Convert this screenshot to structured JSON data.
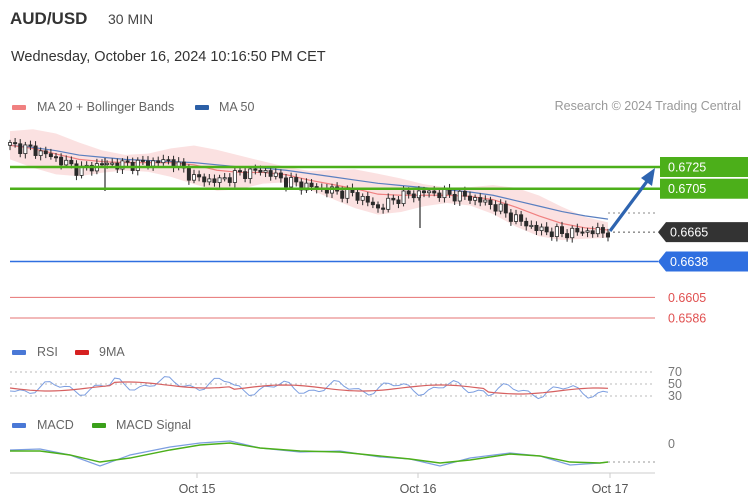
{
  "header": {
    "pair": "AUD/USD",
    "timeframe": "30 MIN",
    "datetime": "Wednesday, October 16, 2024 10:16:50 PM CET",
    "credit": "Research © 2024 Trading Central"
  },
  "legend": {
    "main": [
      {
        "label": "MA 20 + Bollinger Bands",
        "color": "#f08080"
      },
      {
        "label": "MA 50",
        "color": "#2b5fa6"
      }
    ],
    "rsi": [
      {
        "label": "RSI",
        "color": "#4a78d6"
      },
      {
        "label": "9MA",
        "color": "#d62020"
      }
    ],
    "macd": [
      {
        "label": "MACD",
        "color": "#4a78d6"
      },
      {
        "label": "MACD Signal",
        "color": "#3aa01a"
      }
    ]
  },
  "levels": [
    {
      "value": "0.6725",
      "type": "resistance",
      "color": "#4caf1a"
    },
    {
      "value": "0.6705",
      "type": "resistance",
      "color": "#4caf1a"
    },
    {
      "value": "0.6665",
      "type": "last",
      "color": "#333333"
    },
    {
      "value": "0.6638",
      "type": "support",
      "color": "#2f6fe0"
    },
    {
      "value": "0.6605",
      "type": "support-red",
      "color": "#e05050"
    },
    {
      "value": "0.6586",
      "type": "support-red",
      "color": "#e05050"
    }
  ],
  "rsi_levels": [
    "70",
    "50",
    "30"
  ],
  "macd_levels": [
    "0"
  ],
  "x_labels": [
    "Oct 15",
    "Oct 16",
    "Oct 17"
  ],
  "chart_data": {
    "type": "line",
    "title": "AUD/USD 30 MIN",
    "ylim": [
      0.6575,
      0.675
    ],
    "x": [
      "Oct 14 18:00",
      "Oct 14 20:00",
      "Oct 14 22:00",
      "Oct 15 00:00",
      "Oct 15 02:00",
      "Oct 15 04:00",
      "Oct 15 06:00",
      "Oct 15 08:00",
      "Oct 15 10:00",
      "Oct 15 12:00",
      "Oct 15 14:00",
      "Oct 15 16:00",
      "Oct 15 18:00",
      "Oct 15 20:00",
      "Oct 15 22:00",
      "Oct 16 00:00",
      "Oct 16 02:00",
      "Oct 16 04:00",
      "Oct 16 06:00",
      "Oct 16 08:00",
      "Oct 16 10:00",
      "Oct 16 12:00",
      "Oct 16 14:00",
      "Oct 16 16:00",
      "Oct 16 18:00",
      "Oct 16 20:00",
      "Oct 16 22:00"
    ],
    "series": [
      {
        "name": "Price",
        "values": [
          0.6745,
          0.6741,
          0.6733,
          0.6722,
          0.6728,
          0.6727,
          0.6729,
          0.6731,
          0.6715,
          0.6712,
          0.6719,
          0.6722,
          0.6712,
          0.6707,
          0.6703,
          0.67,
          0.6687,
          0.6698,
          0.6702,
          0.67,
          0.6697,
          0.669,
          0.6677,
          0.6667,
          0.6664,
          0.6666,
          0.6665
        ]
      },
      {
        "name": "MA 20",
        "values": [
          0.6745,
          0.6742,
          0.6737,
          0.6732,
          0.673,
          0.6729,
          0.6729,
          0.6729,
          0.6727,
          0.6722,
          0.672,
          0.672,
          0.6718,
          0.6713,
          0.6709,
          0.6705,
          0.67,
          0.6699,
          0.6699,
          0.6699,
          0.6698,
          0.6695,
          0.6688,
          0.668,
          0.6673,
          0.6669,
          0.6667
        ]
      },
      {
        "name": "MA 50",
        "values": [
          0.6745,
          0.6743,
          0.674,
          0.6736,
          0.6734,
          0.6732,
          0.6731,
          0.673,
          0.6729,
          0.6727,
          0.6725,
          0.6724,
          0.6722,
          0.6719,
          0.6716,
          0.6713,
          0.671,
          0.6708,
          0.6706,
          0.6704,
          0.6702,
          0.6699,
          0.6694,
          0.6689,
          0.6684,
          0.668,
          0.6677
        ]
      }
    ]
  }
}
